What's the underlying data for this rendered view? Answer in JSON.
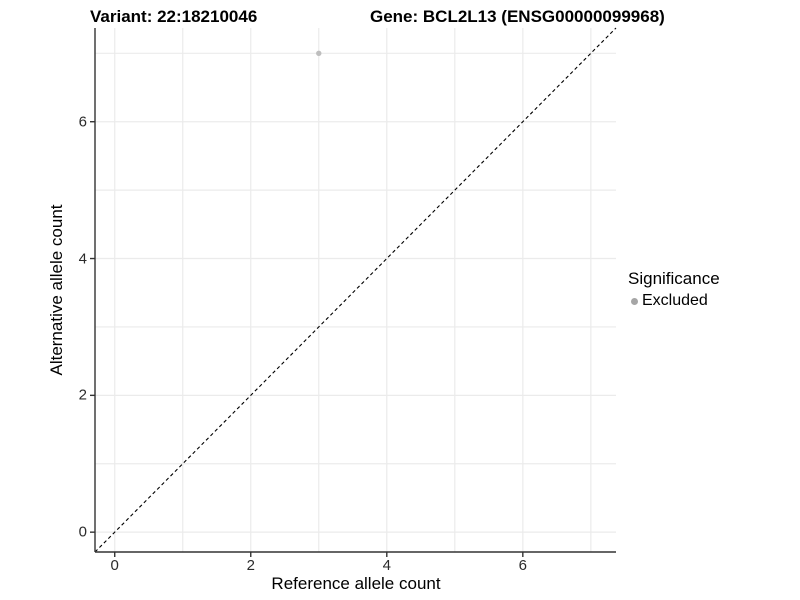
{
  "chart_data": {
    "type": "scatter",
    "title_left": "Variant: 22:18210046",
    "title_right": "Gene: BCL2L13 (ENSG00000099968)",
    "xlabel": "Reference allele count",
    "ylabel": "Alternative allele count",
    "xlim": [
      -0.29,
      7.37
    ],
    "ylim": [
      -0.29,
      7.37
    ],
    "x_ticks": [
      0,
      2,
      4,
      6
    ],
    "y_ticks": [
      0,
      2,
      4,
      6
    ],
    "grid_positions": [
      0,
      1,
      2,
      3,
      4,
      5,
      6,
      7
    ],
    "grid": "on",
    "points": [
      {
        "x": 3,
        "y": 7,
        "series": "Excluded"
      }
    ],
    "identity_line": {
      "style": "dashed",
      "slope": 1,
      "intercept": 0
    },
    "legend": {
      "title": "Significance",
      "position": "right",
      "entries": [
        {
          "label": "Excluded",
          "color": "#a6a6a6"
        }
      ]
    },
    "colors": {
      "point": "#bebebe",
      "grid": "#ebebeb",
      "axis": "#333333",
      "identity_line": "#000000",
      "text": "#000000"
    }
  }
}
